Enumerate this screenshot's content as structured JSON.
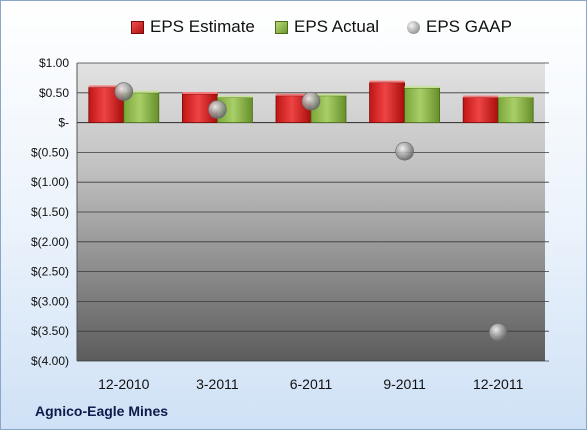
{
  "chart_data": {
    "type": "bar",
    "categories": [
      "12-2010",
      "3-2011",
      "6-2011",
      "9-2011",
      "12-2011"
    ],
    "series": [
      {
        "name": "EPS Estimate",
        "kind": "bar",
        "color": "#d42222",
        "values": [
          0.59,
          0.48,
          0.45,
          0.67,
          0.42
        ]
      },
      {
        "name": "EPS Actual",
        "kind": "bar",
        "color": "#8db84a",
        "values": [
          0.5,
          0.42,
          0.45,
          0.58,
          0.42
        ]
      },
      {
        "name": "EPS GAAP",
        "kind": "marker",
        "color": "#9a9a9a",
        "values": [
          0.52,
          0.22,
          0.36,
          -0.48,
          -3.52
        ]
      }
    ],
    "ylim": [
      -4.0,
      1.0
    ],
    "yticks": [
      1.0,
      0.5,
      0.0,
      -0.5,
      -1.0,
      -1.5,
      -2.0,
      -2.5,
      -3.0,
      -3.5,
      -4.0
    ],
    "ytick_labels": [
      "$1.00",
      "$0.50",
      "$-",
      "$(0.50)",
      "$(1.00)",
      "$(1.50)",
      "$(2.00)",
      "$(2.50)",
      "$(3.00)",
      "$(3.50)",
      "$(4.00)"
    ],
    "grid": true,
    "legend_position": "top",
    "title": "",
    "xlabel": "",
    "ylabel": ""
  },
  "footer": {
    "company": "Agnico-Eagle Mines"
  }
}
